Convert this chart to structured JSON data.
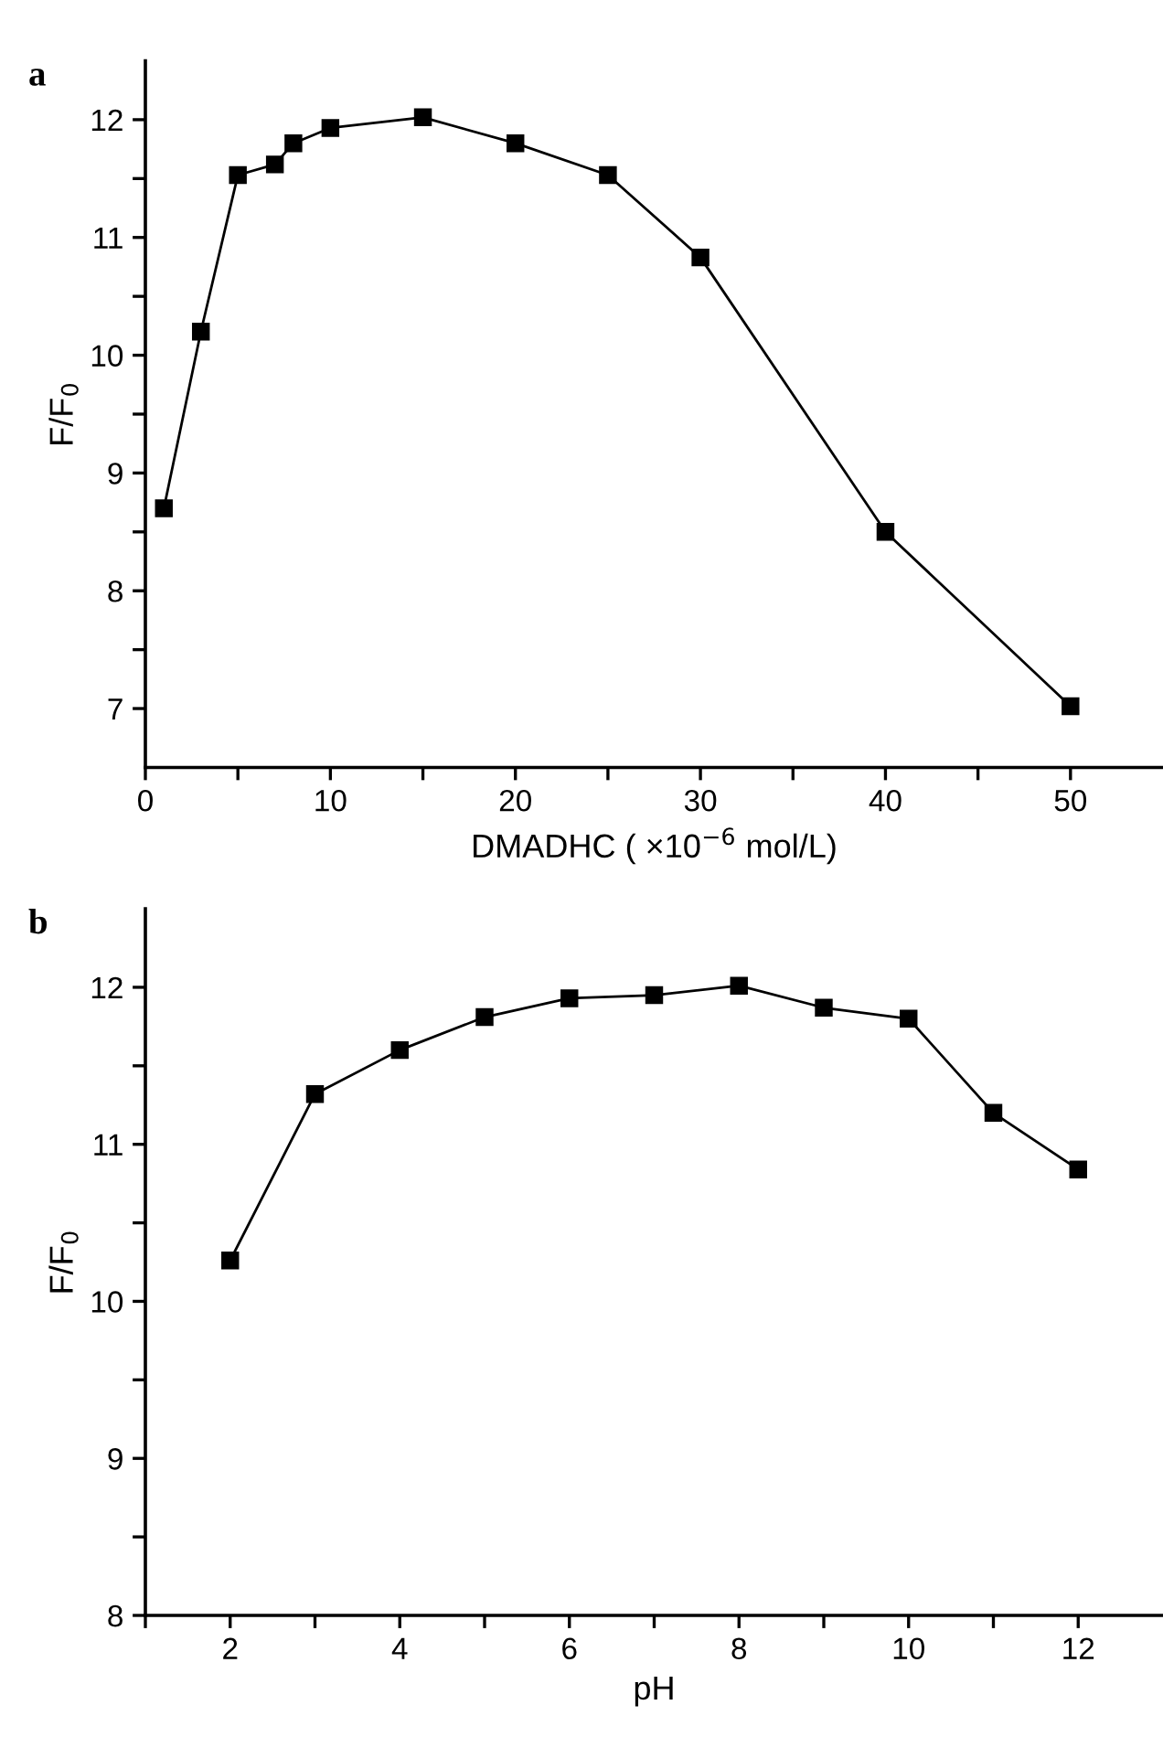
{
  "chart_data": [
    {
      "type": "line",
      "title": "a",
      "xlabel": "DMADHC ( ×10$^{−6}$ mol/L)",
      "ylabel": "F/F$_{0}$",
      "x": [
        1,
        3,
        5,
        7,
        8,
        10,
        15,
        20,
        25,
        30,
        40,
        50
      ],
      "series": [
        {
          "color": "#000000",
          "values": [
            8.7,
            10.2,
            11.53,
            11.62,
            11.8,
            11.93,
            12.02,
            11.8,
            11.53,
            10.83,
            8.5,
            7.02
          ]
        }
      ],
      "xlim": [
        0,
        55
      ],
      "xticks": [
        0,
        {
          "value": 5,
          "label": null
        },
        10,
        {
          "value": 15,
          "label": null
        },
        20,
        {
          "value": 25,
          "label": null
        },
        30,
        {
          "value": 35,
          "label": null
        },
        40,
        {
          "value": 45,
          "label": null
        },
        50
      ],
      "ylim": [
        6.5,
        12.5
      ],
      "yticks": [
        7,
        {
          "value": 7.5,
          "label": null
        },
        8,
        {
          "value": 8.5,
          "label": null
        },
        9,
        {
          "value": 9.5,
          "label": null
        },
        10,
        {
          "value": 10.5,
          "label": null
        },
        11,
        {
          "value": 11.5,
          "label": null
        },
        12
      ],
      "marker": "square",
      "line_style": "solid",
      "grid": false,
      "legend": false
    },
    {
      "type": "line",
      "title": "b",
      "xlabel": "pH",
      "ylabel": "F/F$_{0}$",
      "x": [
        2,
        3,
        4,
        5,
        6,
        7,
        8,
        9,
        10,
        11,
        12
      ],
      "series": [
        {
          "color": "#000000",
          "values": [
            10.26,
            11.32,
            11.6,
            11.81,
            11.93,
            11.95,
            12.01,
            11.87,
            11.8,
            11.2,
            10.84
          ]
        }
      ],
      "xlim": [
        1,
        13
      ],
      "xticks": [
        {
          "value": 1,
          "label": null
        },
        2,
        {
          "value": 3,
          "label": null
        },
        4,
        {
          "value": 5,
          "label": null
        },
        6,
        {
          "value": 7,
          "label": null
        },
        8,
        {
          "value": 9,
          "label": null
        },
        10,
        {
          "value": 11,
          "label": null
        },
        12
      ],
      "ylim": [
        8,
        12.5
      ],
      "yticks": [
        8,
        {
          "value": 8.5,
          "label": null
        },
        9,
        {
          "value": 9.5,
          "label": null
        },
        10,
        {
          "value": 10.5,
          "label": null
        },
        11,
        {
          "value": 11.5,
          "label": null
        },
        12
      ],
      "marker": "square",
      "line_style": "solid",
      "grid": false,
      "legend": false
    }
  ]
}
